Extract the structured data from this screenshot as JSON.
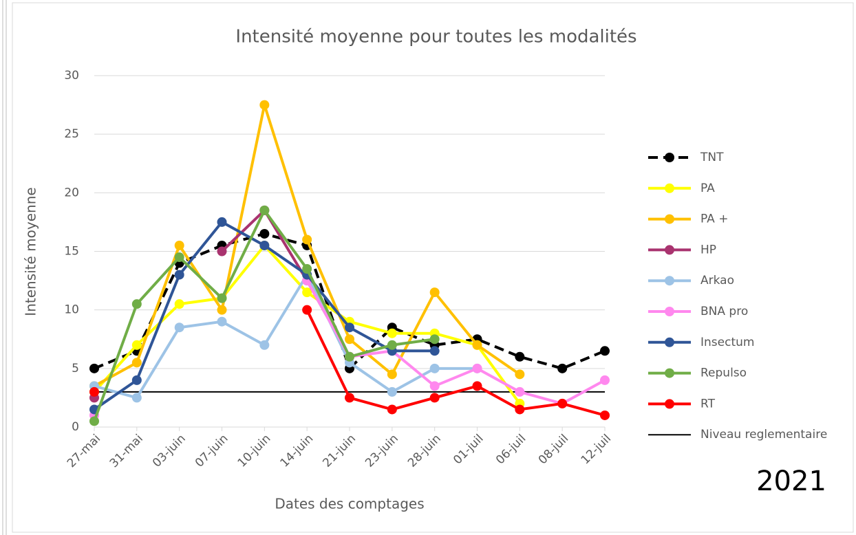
{
  "chart_data": {
    "type": "line",
    "title": "Intensité moyenne pour toutes les modalités",
    "x_label": "Dates des comptages",
    "y_label": "Intensité moyenne",
    "annotation": "2021",
    "categories": [
      "27-mai",
      "31-mai",
      "03-juin",
      "07-juin",
      "10-juin",
      "14-juin",
      "21-juin",
      "23-juin",
      "28-juin",
      "01-juil",
      "06-juil",
      "08-juil",
      "12-juil"
    ],
    "ylim": [
      0,
      30
    ],
    "yticks": [
      0,
      5,
      10,
      15,
      20,
      25,
      30
    ],
    "grid": true,
    "legend": "right",
    "series": [
      {
        "name": "TNT",
        "color": "#000000",
        "dashed": true,
        "values": [
          5,
          6.5,
          14,
          15.5,
          16.5,
          15.5,
          5,
          8.5,
          7,
          7.5,
          6,
          5,
          6.5
        ]
      },
      {
        "name": "PA",
        "color": "#ffff00",
        "values": [
          3,
          7,
          10.5,
          11,
          15.5,
          11.5,
          9,
          8,
          8,
          7,
          2,
          null,
          null
        ]
      },
      {
        "name": "PA +",
        "color": "#ffc000",
        "values": [
          3.5,
          5.5,
          15.5,
          10,
          27.5,
          16,
          7.5,
          4.5,
          11.5,
          7,
          4.5,
          null,
          null
        ]
      },
      {
        "name": "HP",
        "color": "#a9336f",
        "values": [
          2.5,
          null,
          null,
          15,
          18.5,
          12.5,
          6,
          null,
          null,
          null,
          null,
          null,
          null
        ]
      },
      {
        "name": "Arkao",
        "color": "#9dc3e6",
        "values": [
          3.5,
          2.5,
          8.5,
          9,
          7,
          13,
          5.5,
          3,
          5,
          5,
          null,
          null,
          null
        ]
      },
      {
        "name": "BNA pro",
        "color": "#ff88ee",
        "values": [
          1,
          null,
          null,
          null,
          null,
          12.5,
          6,
          6.5,
          3.5,
          5,
          3,
          2,
          4
        ]
      },
      {
        "name": "Insectum",
        "color": "#2f5597",
        "values": [
          1.5,
          4,
          13,
          17.5,
          15.5,
          13,
          8.5,
          6.5,
          6.5,
          null,
          null,
          null,
          null
        ]
      },
      {
        "name": "Repulso",
        "color": "#70ad47",
        "values": [
          0.5,
          10.5,
          14.5,
          11,
          18.5,
          13.5,
          6,
          7,
          7.5,
          null,
          null,
          null,
          null
        ]
      },
      {
        "name": "RT",
        "color": "#ff0000",
        "values": [
          3,
          null,
          null,
          null,
          null,
          10,
          2.5,
          1.5,
          2.5,
          3.5,
          1.5,
          2,
          1
        ]
      }
    ],
    "reference_line": {
      "name": "Niveau reglementaire",
      "value": 3,
      "color": "#000000"
    }
  }
}
